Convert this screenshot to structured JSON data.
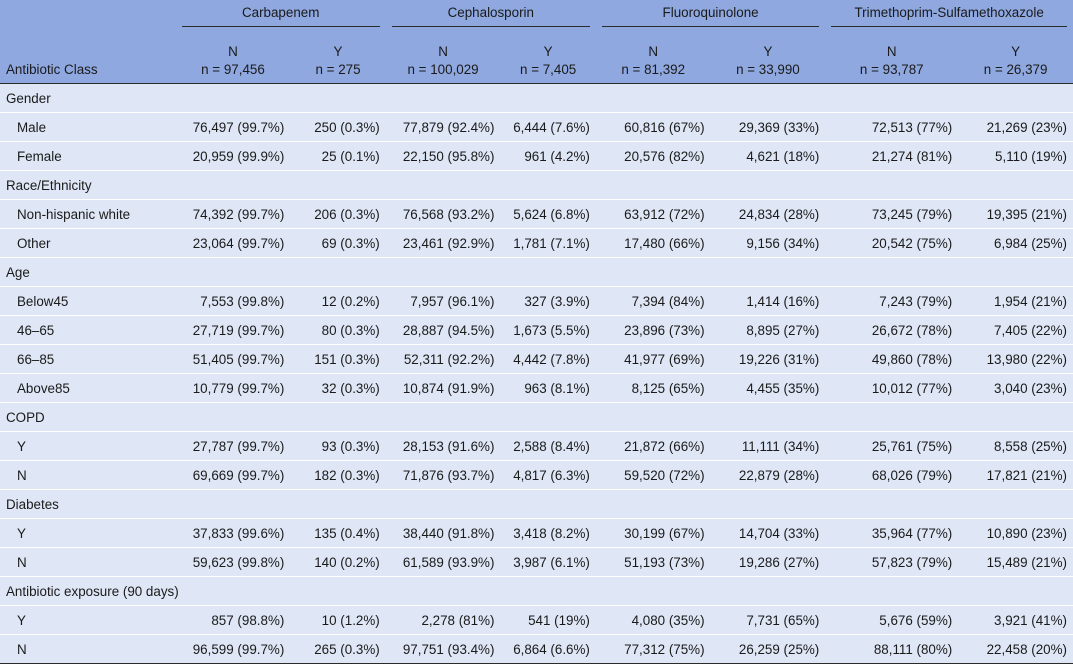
{
  "header": {
    "row_label": "Antibiotic Class",
    "groups": [
      {
        "name": "Carbapenem",
        "n_label": "N",
        "n_count": "n = 97,456",
        "y_label": "Y",
        "y_count": "n = 275"
      },
      {
        "name": "Cephalosporin",
        "n_label": "N",
        "n_count": "n = 100,029",
        "y_label": "Y",
        "y_count": "n = 7,405"
      },
      {
        "name": "Fluoroquinolone",
        "n_label": "N",
        "n_count": "n = 81,392",
        "y_label": "Y",
        "y_count": "n = 33,990"
      },
      {
        "name": "Trimethoprim-Sulfamethoxazole",
        "n_label": "N",
        "n_count": "n = 93,787",
        "y_label": "Y",
        "y_count": "n = 26,379"
      }
    ]
  },
  "rows": [
    {
      "type": "section",
      "label": "Gender"
    },
    {
      "type": "sub",
      "label": "Male",
      "values": [
        "76,497 (99.7%)",
        "250 (0.3%)",
        "77,879 (92.4%)",
        "6,444 (7.6%)",
        "60,816 (67%)",
        "29,369 (33%)",
        "72,513 (77%)",
        "21,269 (23%)"
      ]
    },
    {
      "type": "sub",
      "label": "Female",
      "values": [
        "20,959 (99.9%)",
        "25 (0.1%)",
        "22,150 (95.8%)",
        "961 (4.2%)",
        "20,576 (82%)",
        "4,621 (18%)",
        "21,274 (81%)",
        "5,110 (19%)"
      ]
    },
    {
      "type": "section",
      "label": "Race/Ethnicity"
    },
    {
      "type": "sub",
      "label": "Non-hispanic white",
      "values": [
        "74,392 (99.7%)",
        "206 (0.3%)",
        "76,568 (93.2%)",
        "5,624 (6.8%)",
        "63,912 (72%)",
        "24,834 (28%)",
        "73,245 (79%)",
        "19,395 (21%)"
      ]
    },
    {
      "type": "sub",
      "label": "Other",
      "values": [
        "23,064 (99.7%)",
        "69 (0.3%)",
        "23,461 (92.9%)",
        "1,781 (7.1%)",
        "17,480 (66%)",
        "9,156 (34%)",
        "20,542 (75%)",
        "6,984 (25%)"
      ]
    },
    {
      "type": "section",
      "label": "Age"
    },
    {
      "type": "sub",
      "label": "Below45",
      "values": [
        "7,553 (99.8%)",
        "12 (0.2%)",
        "7,957 (96.1%)",
        "327 (3.9%)",
        "7,394 (84%)",
        "1,414 (16%)",
        "7,243 (79%)",
        "1,954 (21%)"
      ]
    },
    {
      "type": "sub",
      "label": "46–65",
      "values": [
        "27,719 (99.7%)",
        "80 (0.3%)",
        "28,887 (94.5%)",
        "1,673 (5.5%)",
        "23,896 (73%)",
        "8,895 (27%)",
        "26,672 (78%)",
        "7,405 (22%)"
      ]
    },
    {
      "type": "sub",
      "label": "66–85",
      "values": [
        "51,405 (99.7%)",
        "151 (0.3%)",
        "52,311 (92.2%)",
        "4,442 (7.8%)",
        "41,977 (69%)",
        "19,226 (31%)",
        "49,860 (78%)",
        "13,980 (22%)"
      ]
    },
    {
      "type": "sub",
      "label": "Above85",
      "values": [
        "10,779 (99.7%)",
        "32 (0.3%)",
        "10,874 (91.9%)",
        "963 (8.1%)",
        "8,125 (65%)",
        "4,455 (35%)",
        "10,012 (77%)",
        "3,040 (23%)"
      ]
    },
    {
      "type": "section",
      "label": "COPD"
    },
    {
      "type": "sub",
      "label": "Y",
      "values": [
        "27,787 (99.7%)",
        "93 (0.3%)",
        "28,153 (91.6%)",
        "2,588 (8.4%)",
        "21,872 (66%)",
        "11,111 (34%)",
        "25,761 (75%)",
        "8,558 (25%)"
      ]
    },
    {
      "type": "sub",
      "label": "N",
      "values": [
        "69,669 (99.7%)",
        "182 (0.3%)",
        "71,876 (93.7%)",
        "4,817 (6.3%)",
        "59,520 (72%)",
        "22,879 (28%)",
        "68,026 (79%)",
        "17,821 (21%)"
      ]
    },
    {
      "type": "section",
      "label": "Diabetes"
    },
    {
      "type": "sub",
      "label": "Y",
      "values": [
        "37,833 (99.6%)",
        "135 (0.4%)",
        "38,440 (91.8%)",
        "3,418 (8.2%)",
        "30,199 (67%)",
        "14,704 (33%)",
        "35,964 (77%)",
        "10,890 (23%)"
      ]
    },
    {
      "type": "sub",
      "label": "N",
      "values": [
        "59,623 (99.8%)",
        "140 (0.2%)",
        "61,589 (93.9%)",
        "3,987 (6.1%)",
        "51,193 (73%)",
        "19,286 (27%)",
        "57,823 (79%)",
        "15,489 (21%)"
      ]
    },
    {
      "type": "section",
      "label": "Antibiotic exposure (90 days)"
    },
    {
      "type": "sub",
      "label": "Y",
      "values": [
        "857 (98.8%)",
        "10 (1.2%)",
        "2,278 (81%)",
        "541 (19%)",
        "4,080 (35%)",
        "7,731 (65%)",
        "5,676 (59%)",
        "3,921 (41%)"
      ]
    },
    {
      "type": "sub",
      "label": "N",
      "values": [
        "96,599 (99.7%)",
        "265 (0.3%)",
        "97,751 (93.4%)",
        "6,864 (6.6%)",
        "77,312 (75%)",
        "26,259 (25%)",
        "88,111 (80%)",
        "22,458 (20%)"
      ]
    }
  ],
  "colors": {
    "header_bg": "#8fa8e0",
    "row_bg": "#dfe7f6",
    "rule": "#2b2b2b"
  }
}
